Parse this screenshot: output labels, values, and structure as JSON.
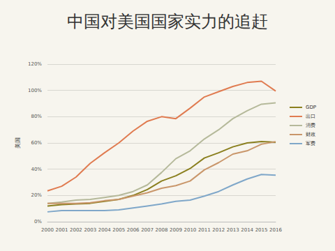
{
  "chart_data": {
    "type": "line",
    "title": "中国对美国国家实力的追赶",
    "y_label": "美国",
    "categories": [
      "2000",
      "2001",
      "2002",
      "2003",
      "2004",
      "2005",
      "2006",
      "2007",
      "2008",
      "2009",
      "2010",
      "2011",
      "2012",
      "2013",
      "2014",
      "2015",
      "2016"
    ],
    "series": [
      {
        "name": "GDP",
        "color": "#8a7f1e",
        "values": [
          12,
          13,
          13.5,
          14,
          15.5,
          17,
          20,
          24.5,
          31,
          35,
          40.5,
          48.5,
          52.5,
          57,
          60,
          61,
          60.5
        ]
      },
      {
        "name": "出口",
        "color": "#e07b50",
        "values": [
          23.5,
          27,
          34,
          44.5,
          52.5,
          60,
          69,
          76.5,
          80,
          78.5,
          86.5,
          95,
          99,
          103,
          106,
          107,
          99.5
        ]
      },
      {
        "name": "消费",
        "color": "#b5b99a",
        "values": [
          14,
          15,
          16.5,
          17,
          18.5,
          20,
          23,
          28,
          37.5,
          48,
          54,
          63,
          70,
          78.5,
          84.5,
          89.5,
          90.5
        ]
      },
      {
        "name": "财政",
        "color": "#c9966a",
        "values": [
          14,
          14,
          14,
          14.5,
          16,
          17,
          19.5,
          22,
          25.5,
          27.5,
          31,
          39.5,
          45,
          51.5,
          54,
          59,
          61
        ]
      },
      {
        "name": "军费",
        "color": "#7fa7c9",
        "values": [
          7.5,
          8.5,
          8.5,
          8.5,
          8.5,
          9,
          10.5,
          12,
          13.5,
          15.5,
          16.5,
          19.5,
          23,
          28,
          32.5,
          36,
          35.5
        ]
      }
    ],
    "ylim": [
      0,
      120
    ],
    "yticks": [
      {
        "value": 0,
        "label": "0%"
      },
      {
        "value": 20,
        "label": "20%"
      },
      {
        "value": 40,
        "label": "40%"
      },
      {
        "value": 60,
        "label": "60%"
      },
      {
        "value": 80,
        "label": "80%"
      },
      {
        "value": 100,
        "label": "100%"
      },
      {
        "value": 120,
        "label": "120%"
      }
    ],
    "grid": true,
    "legend": "right"
  }
}
